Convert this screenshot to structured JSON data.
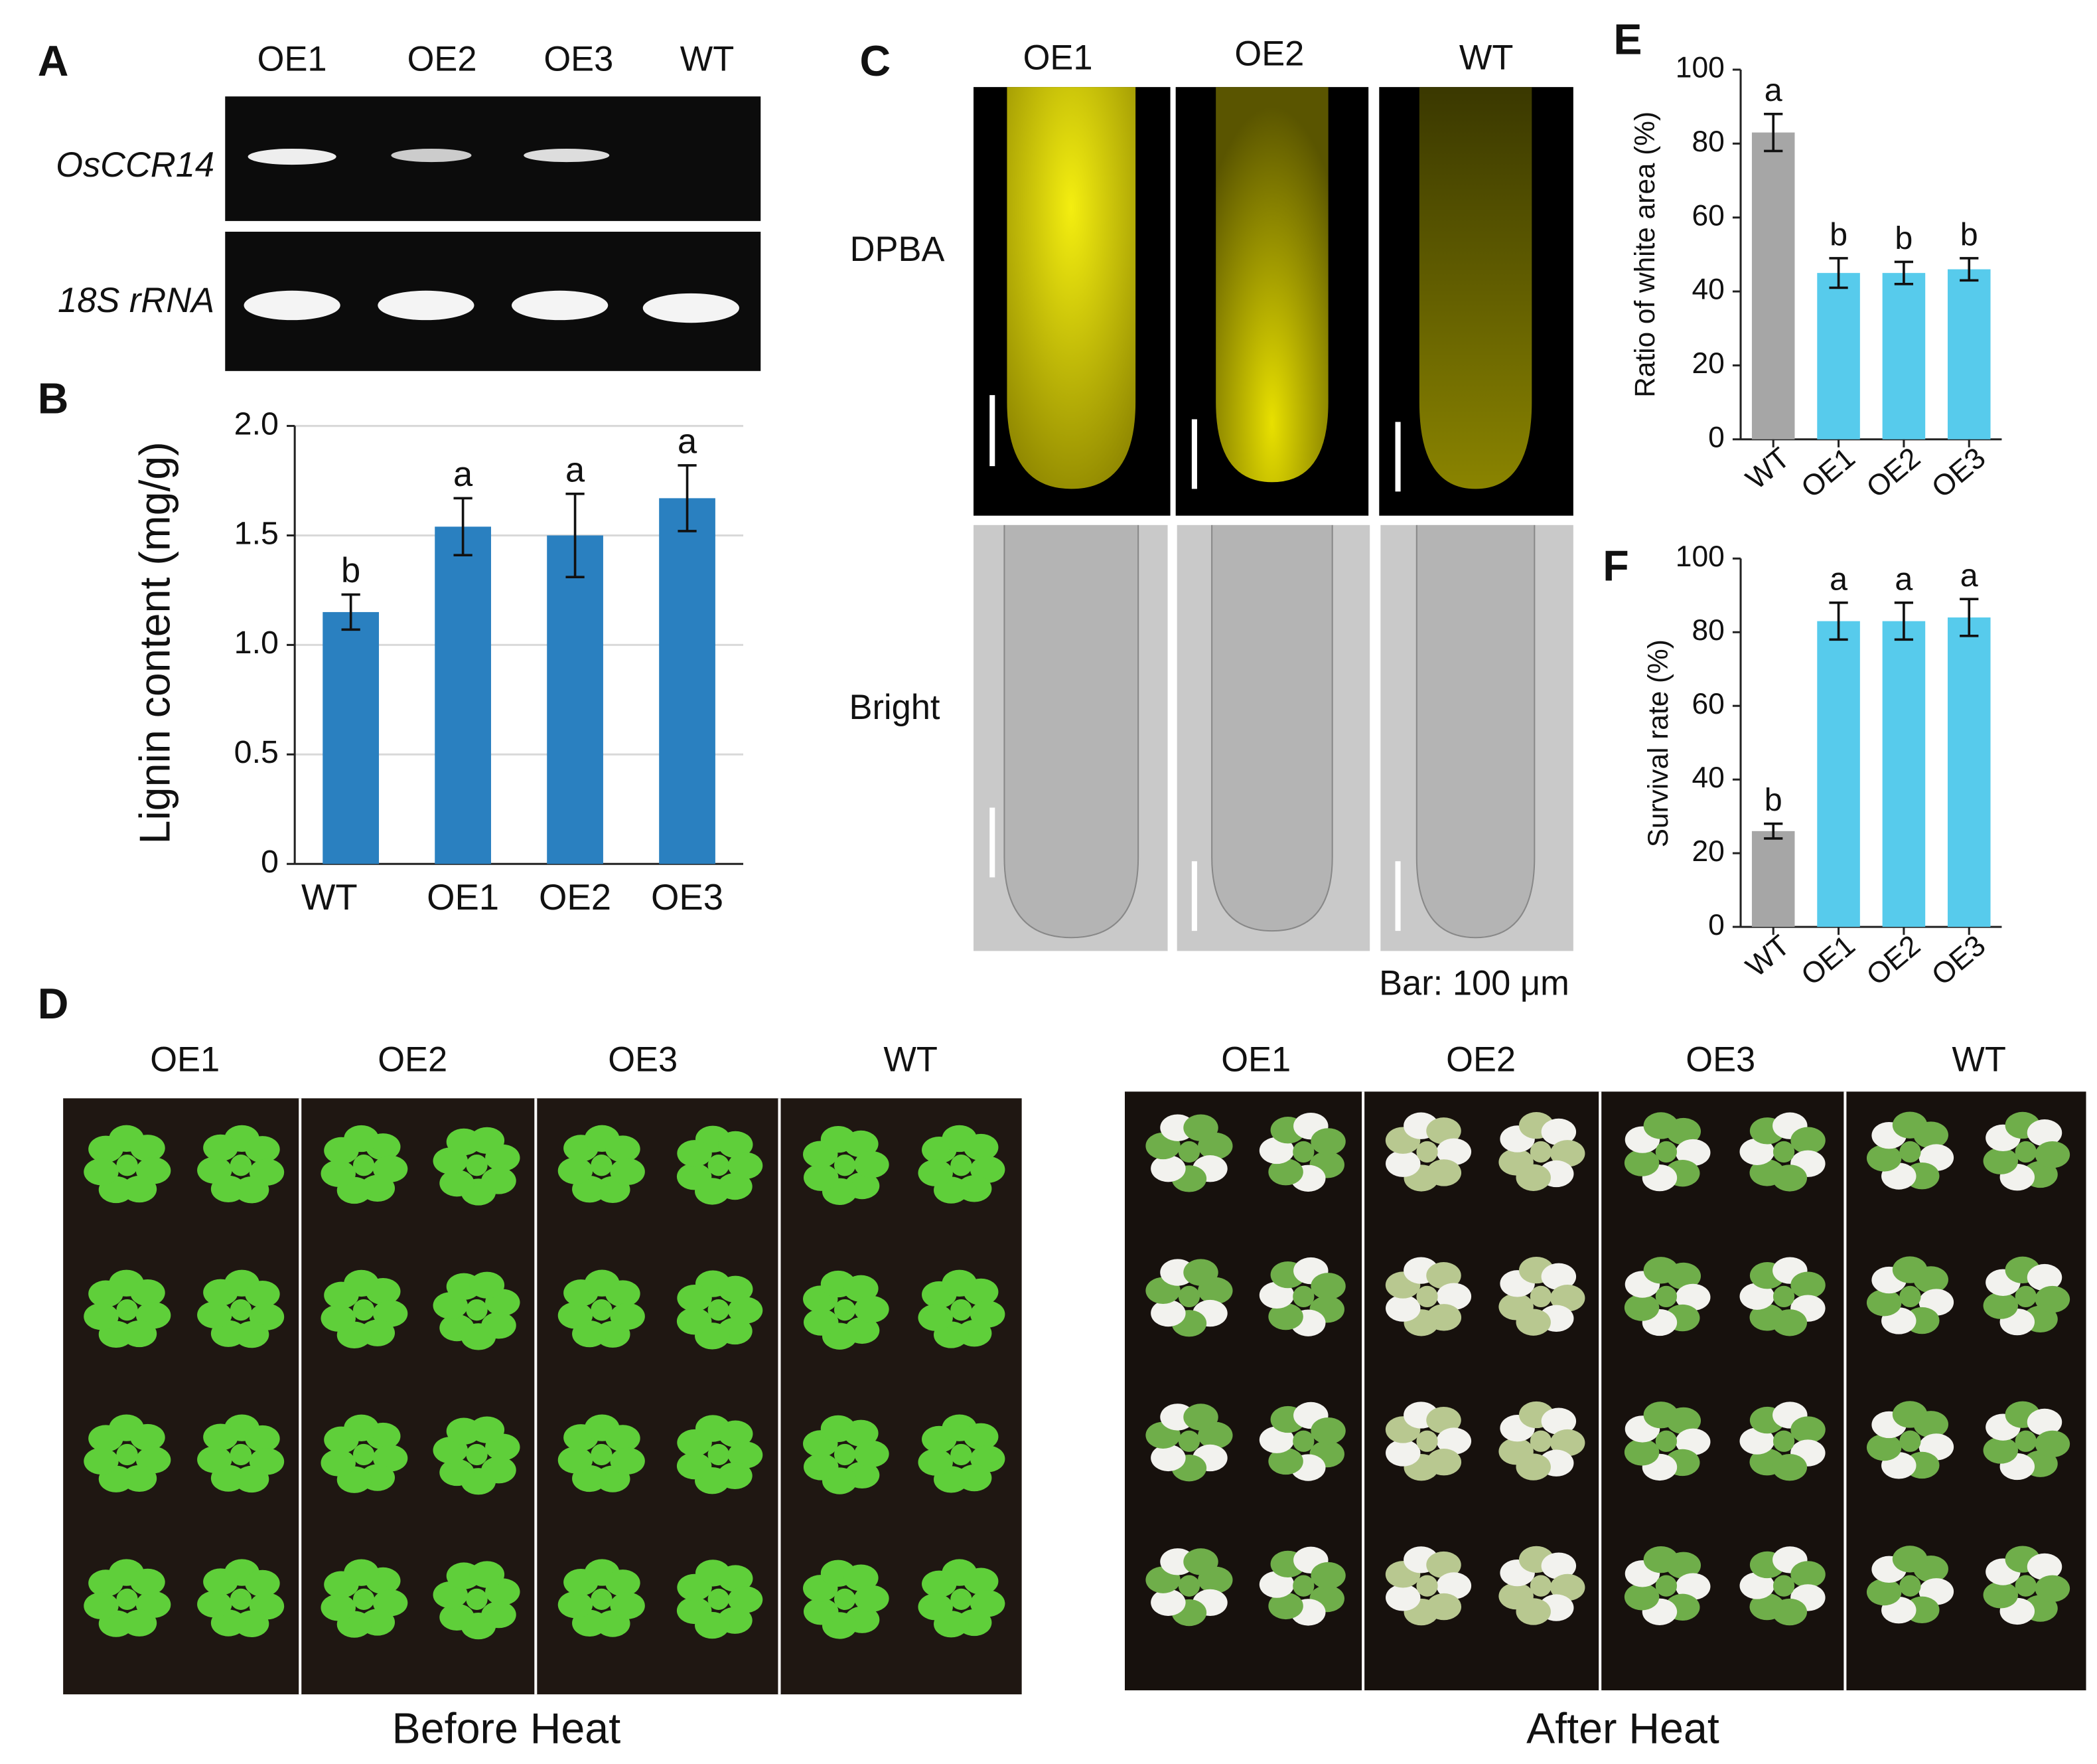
{
  "panels": {
    "A": {
      "letter": "A",
      "lanes": [
        "OE1",
        "OE2",
        "OE3",
        "WT"
      ],
      "rows": [
        "OsCCR14",
        "18S rRNA"
      ]
    },
    "C": {
      "letter": "C",
      "columns": [
        "OE1",
        "OE2",
        "WT"
      ],
      "rows": [
        "DPBA",
        "Bright"
      ],
      "scale": "Bar: 100 μm"
    },
    "D": {
      "letter": "D",
      "before": {
        "columns": [
          "OE1",
          "OE2",
          "OE3",
          "WT"
        ],
        "caption": "Before Heat"
      },
      "after": {
        "columns": [
          "OE1",
          "OE2",
          "OE3",
          "WT"
        ],
        "caption": "After Heat"
      }
    }
  },
  "chart_data": [
    {
      "letter": "B",
      "type": "bar",
      "ylabel": "Lignin content (mg/g)",
      "categories": [
        "WT",
        "OE1",
        "OE2",
        "OE3"
      ],
      "values": [
        1.15,
        1.54,
        1.5,
        1.67
      ],
      "errors": [
        0.08,
        0.13,
        0.19,
        0.15
      ],
      "annotations": [
        "b",
        "a",
        "a",
        "a"
      ],
      "color": "#2a80c0",
      "ylim": [
        0,
        2
      ],
      "yticks": [
        0,
        0.5,
        {
          "value": 1,
          "label": "1.0"
        },
        1.5,
        {
          "value": 2,
          "label": "2.0"
        }
      ],
      "grid": true
    },
    {
      "letter": "E",
      "type": "bar",
      "ylabel": "Ratio of white area (%)",
      "categories": [
        "WT",
        "OE1",
        "OE2",
        "OE3"
      ],
      "values": [
        83,
        45,
        45,
        46
      ],
      "errors": [
        5,
        4,
        3,
        3
      ],
      "annotations": [
        "a",
        "b",
        "b",
        "b"
      ],
      "colors": [
        "#a6a6a6",
        "#57cbec",
        "#57cbec",
        "#57cbec"
      ],
      "ylim": [
        0,
        100
      ],
      "yticks": [
        0,
        20,
        40,
        60,
        80,
        100
      ],
      "grid": false
    },
    {
      "letter": "F",
      "type": "bar",
      "ylabel": "Survival rate (%)",
      "categories": [
        "WT",
        "OE1",
        "OE2",
        "OE3"
      ],
      "values": [
        26,
        83,
        83,
        84
      ],
      "errors": [
        2,
        5,
        5,
        5
      ],
      "annotations": [
        "b",
        "a",
        "a",
        "a"
      ],
      "colors": [
        "#a6a6a6",
        "#57cbec",
        "#57cbec",
        "#57cbec"
      ],
      "ylim": [
        0,
        100
      ],
      "yticks": [
        0,
        20,
        40,
        60,
        80,
        100
      ],
      "grid": false
    }
  ]
}
